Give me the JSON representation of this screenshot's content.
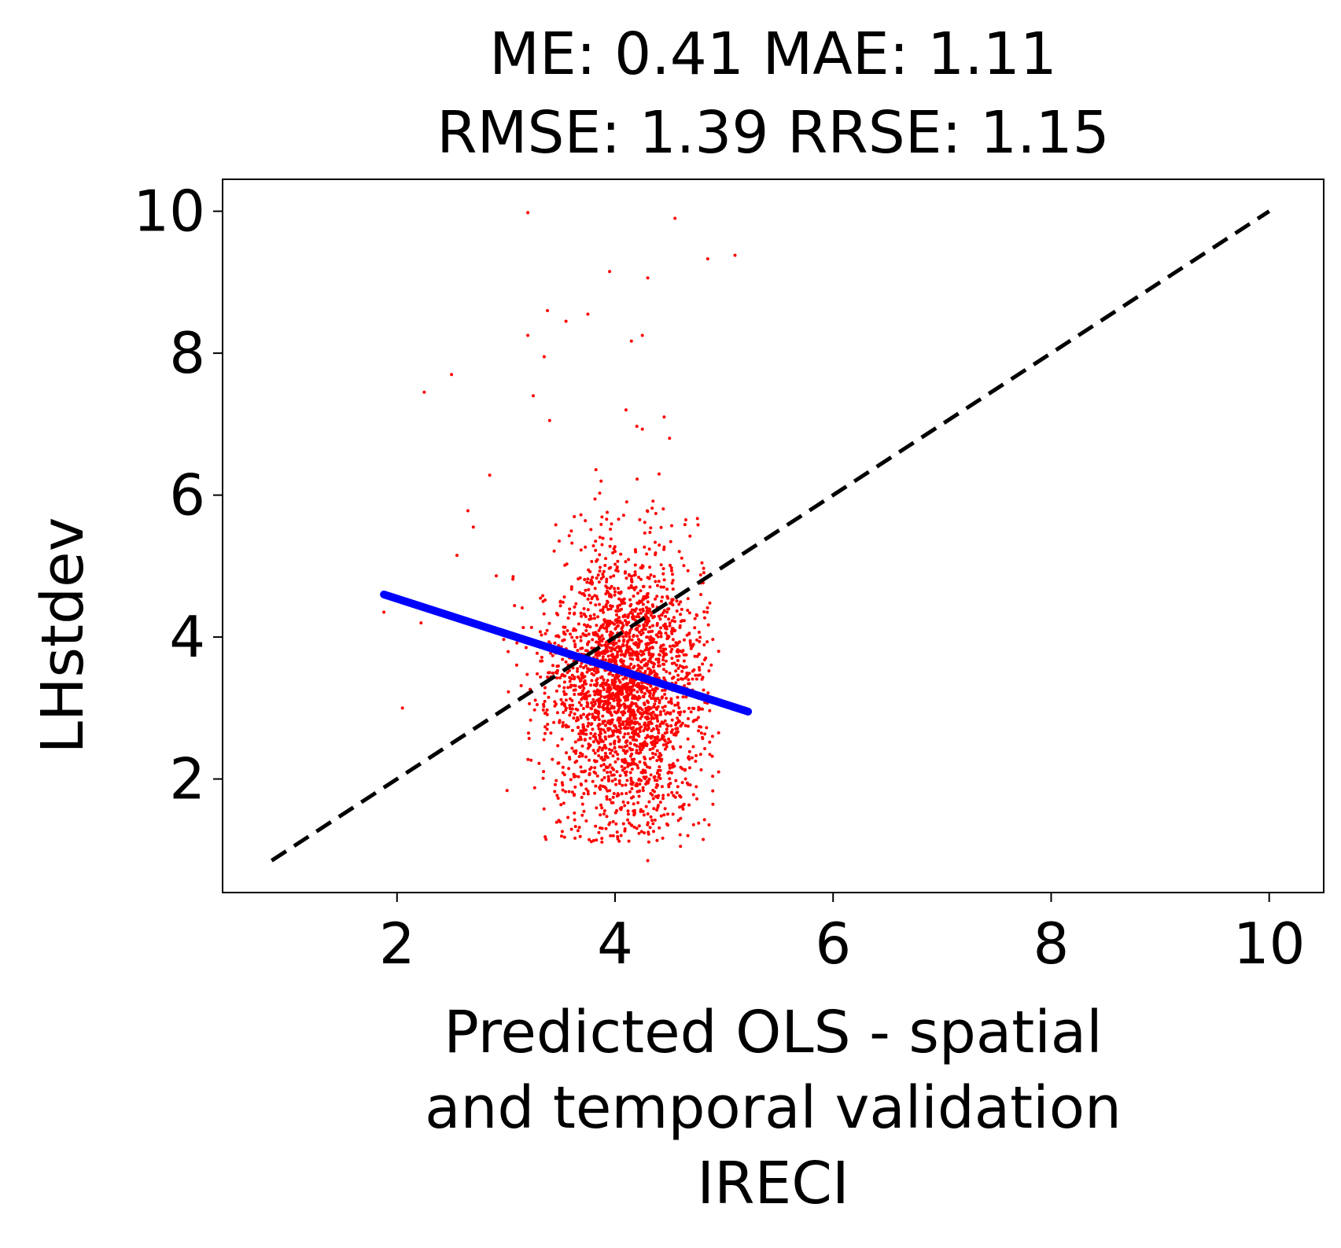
{
  "chart_data": {
    "type": "scatter",
    "title_lines": [
      "ME: 0.41 MAE: 1.11",
      "RMSE: 1.39 RRSE: 1.15"
    ],
    "xlabel_lines": [
      "Predicted OLS - spatial",
      "and temporal validation",
      "IRECI"
    ],
    "ylabel": "LHstdev",
    "xlim": [
      0.4,
      10.5
    ],
    "ylim": [
      0.4,
      10.45
    ],
    "xticks": [
      2,
      4,
      6,
      8,
      10
    ],
    "yticks": [
      2,
      4,
      6,
      8,
      10
    ],
    "grid": false,
    "colors": {
      "points": "#ff0000",
      "regression": "#0000ff",
      "identity": "#000000"
    },
    "identity_line": {
      "x": [
        0.85,
        10.0
      ],
      "y": [
        0.85,
        10.0
      ],
      "style": "dashed"
    },
    "regression_line": {
      "x": [
        1.88,
        5.22
      ],
      "y": [
        4.6,
        2.95
      ]
    },
    "scatter_summary": {
      "center": [
        4.1,
        3.3
      ],
      "approx_points": 2500
    },
    "outliers": [
      {
        "x": 3.2,
        "y": 9.98
      },
      {
        "x": 4.55,
        "y": 9.9
      },
      {
        "x": 4.85,
        "y": 9.33
      },
      {
        "x": 5.1,
        "y": 9.38
      },
      {
        "x": 3.95,
        "y": 9.15
      },
      {
        "x": 4.3,
        "y": 9.06
      },
      {
        "x": 3.38,
        "y": 8.6
      },
      {
        "x": 3.55,
        "y": 8.45
      },
      {
        "x": 3.75,
        "y": 8.55
      },
      {
        "x": 3.2,
        "y": 8.25
      },
      {
        "x": 4.25,
        "y": 8.25
      },
      {
        "x": 4.15,
        "y": 8.17
      },
      {
        "x": 3.35,
        "y": 7.95
      },
      {
        "x": 2.5,
        "y": 7.7
      },
      {
        "x": 2.25,
        "y": 7.45
      },
      {
        "x": 3.25,
        "y": 7.4
      },
      {
        "x": 4.1,
        "y": 7.2
      },
      {
        "x": 4.45,
        "y": 7.1
      },
      {
        "x": 3.4,
        "y": 7.05
      },
      {
        "x": 4.2,
        "y": 6.97
      },
      {
        "x": 4.25,
        "y": 6.93
      },
      {
        "x": 4.5,
        "y": 6.8
      },
      {
        "x": 2.85,
        "y": 6.28
      },
      {
        "x": 2.65,
        "y": 5.78
      },
      {
        "x": 2.7,
        "y": 5.55
      },
      {
        "x": 2.55,
        "y": 5.15
      },
      {
        "x": 1.88,
        "y": 4.35
      },
      {
        "x": 2.22,
        "y": 4.2
      },
      {
        "x": 2.05,
        "y": 3.0
      },
      {
        "x": 4.95,
        "y": 3.8
      },
      {
        "x": 4.95,
        "y": 2.65
      },
      {
        "x": 4.95,
        "y": 2.1
      },
      {
        "x": 4.3,
        "y": 0.85
      },
      {
        "x": 4.6,
        "y": 1.05
      }
    ]
  }
}
